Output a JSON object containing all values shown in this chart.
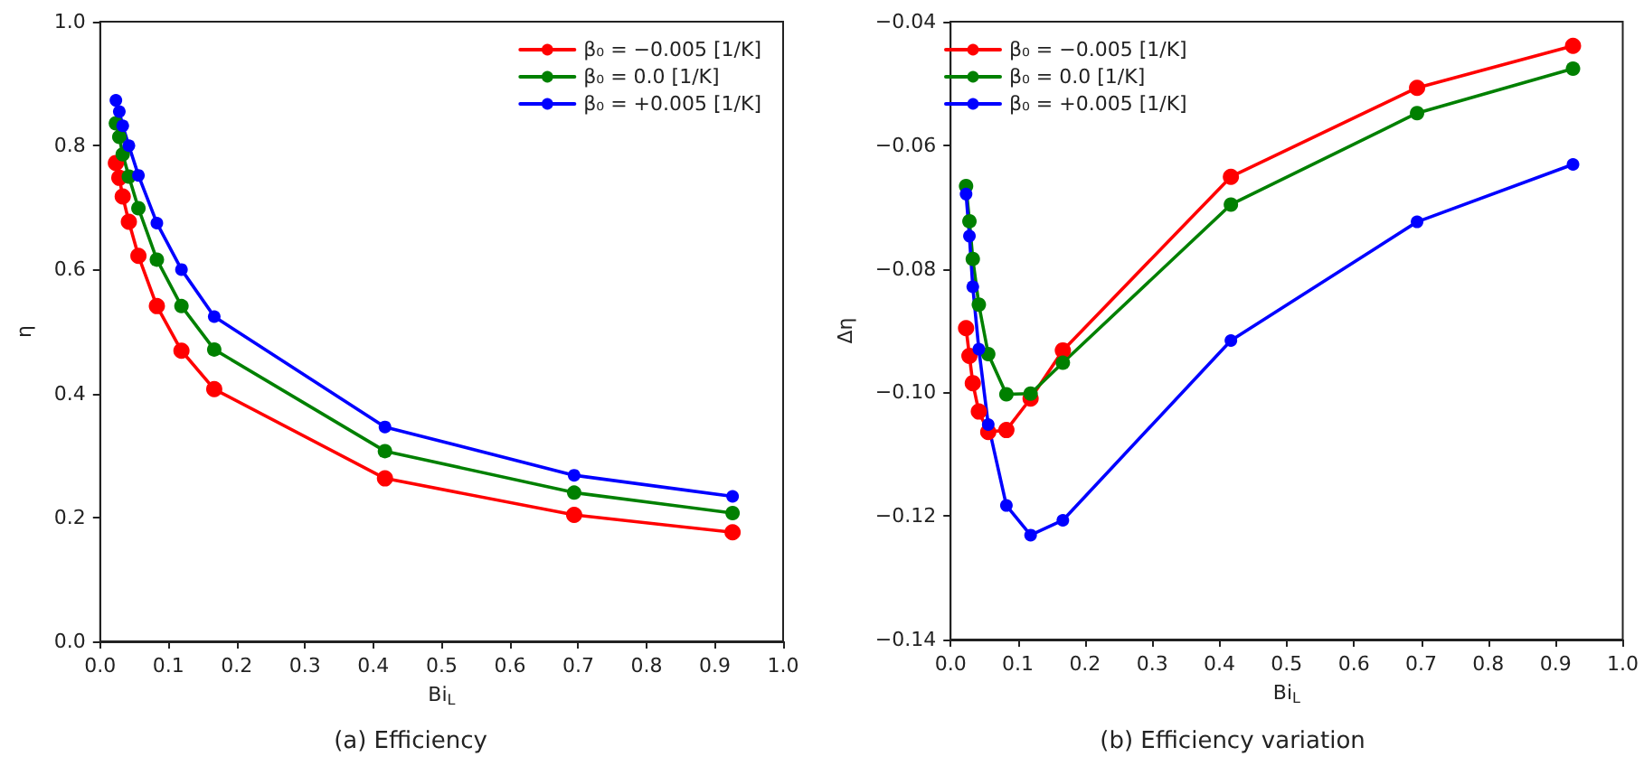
{
  "chart_data": [
    {
      "type": "line",
      "title": "(a) Efficiency",
      "xlabel": "Bi$_{L}$",
      "ylabel": "η",
      "marker": "circle",
      "line_style": "solid",
      "grid": false,
      "legend": "top right",
      "xlim": [
        0,
        1
      ],
      "ylim": [
        0,
        1
      ],
      "xticks": [
        {
          "value": 0,
          "label": "0.0"
        },
        {
          "value": 0.1,
          "label": "0.1"
        },
        {
          "value": 0.2,
          "label": "0.2"
        },
        {
          "value": 0.3,
          "label": "0.3"
        },
        {
          "value": 0.4,
          "label": "0.4"
        },
        {
          "value": 0.5,
          "label": "0.5"
        },
        {
          "value": 0.6,
          "label": "0.6"
        },
        {
          "value": 0.7,
          "label": "0.7"
        },
        {
          "value": 0.8,
          "label": "0.8"
        },
        {
          "value": 0.9,
          "label": "0.9"
        },
        {
          "value": 1,
          "label": "1.0"
        }
      ],
      "yticks": [
        {
          "value": 0,
          "label": "0.0"
        },
        {
          "value": 0.2,
          "label": "0.2"
        },
        {
          "value": 0.4,
          "label": "0.4"
        },
        {
          "value": 0.6,
          "label": "0.6"
        },
        {
          "value": 0.8,
          "label": "0.8"
        },
        {
          "value": 1,
          "label": "1.0"
        }
      ],
      "x": [
        0.023,
        0.028,
        0.033,
        0.042,
        0.056,
        0.083,
        0.119,
        0.167,
        0.417,
        0.694,
        0.926
      ],
      "series": [
        {
          "name": "β₀ = −0.005 [1/K]",
          "color": "#ff0000",
          "values": [
            0.772,
            0.748,
            0.718,
            0.677,
            0.622,
            0.541,
            0.469,
            0.407,
            0.263,
            0.204,
            0.176
          ]
        },
        {
          "name": "β₀ = 0.0 [1/K]",
          "color": "#008000",
          "values": [
            0.836,
            0.814,
            0.786,
            0.75,
            0.699,
            0.616,
            0.541,
            0.471,
            0.307,
            0.24,
            0.207
          ]
        },
        {
          "name": "β₀ = +0.005 [1/K]",
          "color": "#0000ff",
          "values": [
            0.873,
            0.855,
            0.832,
            0.8,
            0.752,
            0.675,
            0.6,
            0.524,
            0.346,
            0.268,
            0.234
          ]
        }
      ]
    },
    {
      "type": "line",
      "title": "(b) Efficiency variation",
      "xlabel": "Bi$_{L}$",
      "ylabel": "Δη",
      "marker": "circle",
      "line_style": "solid",
      "grid": false,
      "legend": "top left",
      "xlim": [
        0,
        1
      ],
      "ylim": [
        -0.14,
        -0.04
      ],
      "xticks": [
        {
          "value": 0,
          "label": "0.0"
        },
        {
          "value": 0.1,
          "label": "0.1"
        },
        {
          "value": 0.2,
          "label": "0.2"
        },
        {
          "value": 0.3,
          "label": "0.3"
        },
        {
          "value": 0.4,
          "label": "0.4"
        },
        {
          "value": 0.5,
          "label": "0.5"
        },
        {
          "value": 0.6,
          "label": "0.6"
        },
        {
          "value": 0.7,
          "label": "0.7"
        },
        {
          "value": 0.8,
          "label": "0.8"
        },
        {
          "value": 0.9,
          "label": "0.9"
        },
        {
          "value": 1,
          "label": "1.0"
        }
      ],
      "yticks": [
        {
          "value": -0.14,
          "label": "−0.14"
        },
        {
          "value": -0.12,
          "label": "−0.12"
        },
        {
          "value": -0.1,
          "label": "−0.10"
        },
        {
          "value": -0.08,
          "label": "−0.08"
        },
        {
          "value": -0.06,
          "label": "−0.06"
        },
        {
          "value": -0.04,
          "label": "−0.04"
        }
      ],
      "x": [
        0.023,
        0.028,
        0.033,
        0.042,
        0.056,
        0.083,
        0.119,
        0.167,
        0.417,
        0.694,
        0.926
      ],
      "series": [
        {
          "name": "β₀ = −0.005 [1/K]",
          "color": "#ff0000",
          "values": [
            -0.0896,
            -0.0941,
            -0.0985,
            -0.1031,
            -0.1064,
            -0.1061,
            -0.101,
            -0.0932,
            -0.0651,
            -0.0507,
            -0.0439
          ]
        },
        {
          "name": "β₀ = 0.0 [1/K]",
          "color": "#008000",
          "values": [
            -0.0666,
            -0.0723,
            -0.0784,
            -0.0858,
            -0.0938,
            -0.1003,
            -0.1002,
            -0.0952,
            -0.0696,
            -0.0548,
            -0.0476
          ]
        },
        {
          "name": "β₀ = +0.005 [1/K]",
          "color": "#0000ff",
          "values": [
            -0.0679,
            -0.0747,
            -0.0829,
            -0.093,
            -0.1052,
            -0.1183,
            -0.1231,
            -0.1207,
            -0.0916,
            -0.0724,
            -0.0631
          ]
        }
      ]
    }
  ]
}
